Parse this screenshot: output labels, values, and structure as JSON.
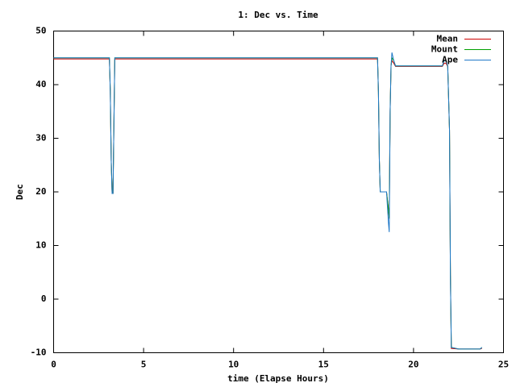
{
  "chart_data": {
    "type": "line",
    "title": "1: Dec vs. Time",
    "xlabel": "time (Elapse Hours)",
    "ylabel": "Dec",
    "x": [
      0,
      3.1,
      3.15,
      3.2,
      3.25,
      3.3,
      3.35,
      3.4,
      18.0,
      18.05,
      18.1,
      18.15,
      18.5,
      18.6,
      18.65,
      18.7,
      18.75,
      18.8,
      18.9,
      19.0,
      21.6,
      21.7,
      21.8,
      21.9,
      22.0,
      22.05,
      22.1,
      22.5,
      23.7,
      23.8
    ],
    "series": [
      {
        "name": "Mean",
        "color": "#cc0000",
        "values": [
          44.8,
          44.8,
          38.7,
          26,
          19.7,
          19.7,
          32.5,
          44.8,
          44.8,
          38.7,
          26,
          20,
          20,
          17,
          15,
          35,
          43.5,
          44.5,
          44,
          43.4,
          43.4,
          44,
          44,
          43.4,
          31.5,
          4.5,
          -9.2,
          -9.3,
          -9.3,
          -9.2
        ]
      },
      {
        "name": "Mount",
        "color": "#00a000",
        "values": [
          45,
          45,
          38.7,
          26,
          19.7,
          19.7,
          32.5,
          45,
          45,
          38.7,
          26,
          20,
          20,
          17,
          15,
          35,
          43.5,
          45,
          44.5,
          43.5,
          43.5,
          44.5,
          44.5,
          43.5,
          31.5,
          4.5,
          -9,
          -9.3,
          -9.3,
          -9
        ]
      },
      {
        "name": "Ape",
        "color": "#1f78c8",
        "values": [
          45,
          45,
          38.7,
          26,
          19.7,
          19.7,
          32.5,
          45,
          45,
          38.7,
          26,
          20,
          20,
          14.5,
          12.5,
          35,
          43.5,
          46,
          44.5,
          43.5,
          43.5,
          44.5,
          44.5,
          43.5,
          31.5,
          4.5,
          -9,
          -9.3,
          -9.3,
          -9
        ]
      }
    ],
    "xlim": [
      0,
      25
    ],
    "xticks": [
      0,
      5,
      10,
      15,
      20,
      25
    ],
    "ylim": [
      -10,
      50
    ],
    "yticks": [
      -10,
      0,
      10,
      20,
      30,
      40,
      50
    ],
    "legend": "top-right"
  }
}
